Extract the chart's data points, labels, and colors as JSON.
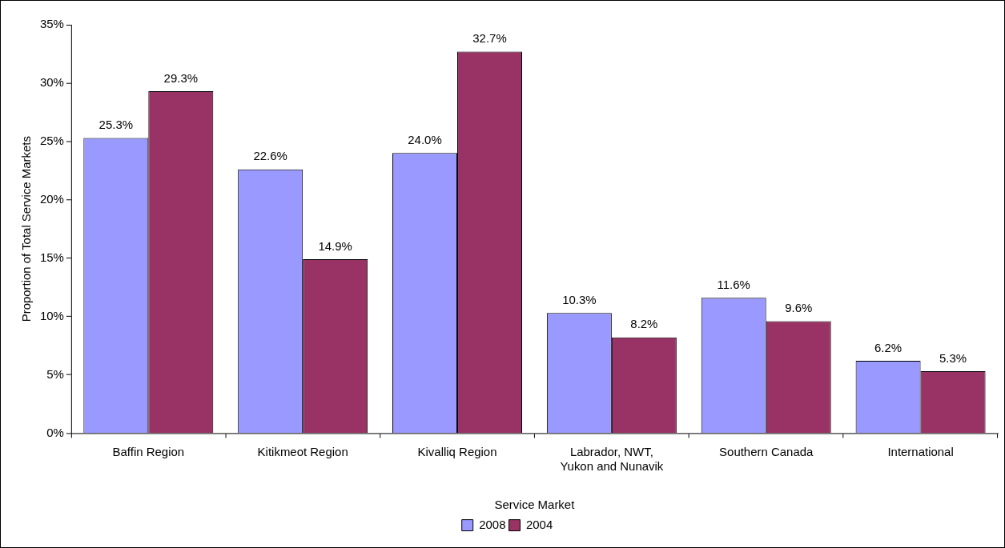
{
  "chart_data": {
    "type": "bar",
    "xlabel": "Service Market",
    "ylabel": "Proportion of Total Service Markets",
    "categories": [
      "Baffin Region",
      "Kitikmeot Region",
      "Kivalliq Region",
      "Labrador, NWT, Yukon and Nunavik",
      "Southern Canada",
      "International"
    ],
    "series": [
      {
        "name": "2008",
        "color": "#9999ff",
        "values": [
          25.3,
          22.6,
          24.0,
          10.3,
          11.6,
          6.2
        ],
        "value_labels": [
          "25.3%",
          "22.6%",
          "24.0%",
          "10.3%",
          "11.6%",
          "6.2%"
        ]
      },
      {
        "name": "2004",
        "color": "#993366",
        "values": [
          29.3,
          14.9,
          32.7,
          8.2,
          9.6,
          5.3
        ],
        "value_labels": [
          "29.3%",
          "14.9%",
          "32.7%",
          "8.2%",
          "9.6%",
          "5.3%"
        ]
      }
    ],
    "ylim": [
      0,
      35
    ],
    "yticks": [
      {
        "value": 0,
        "label": "0%"
      },
      {
        "value": 5,
        "label": "5%"
      },
      {
        "value": 10,
        "label": "10%"
      },
      {
        "value": 15,
        "label": "15%"
      },
      {
        "value": 20,
        "label": "20%"
      },
      {
        "value": 25,
        "label": "25%"
      },
      {
        "value": 30,
        "label": "30%"
      },
      {
        "value": 35,
        "label": "35%"
      }
    ],
    "grid": false,
    "legend": "bottom"
  }
}
